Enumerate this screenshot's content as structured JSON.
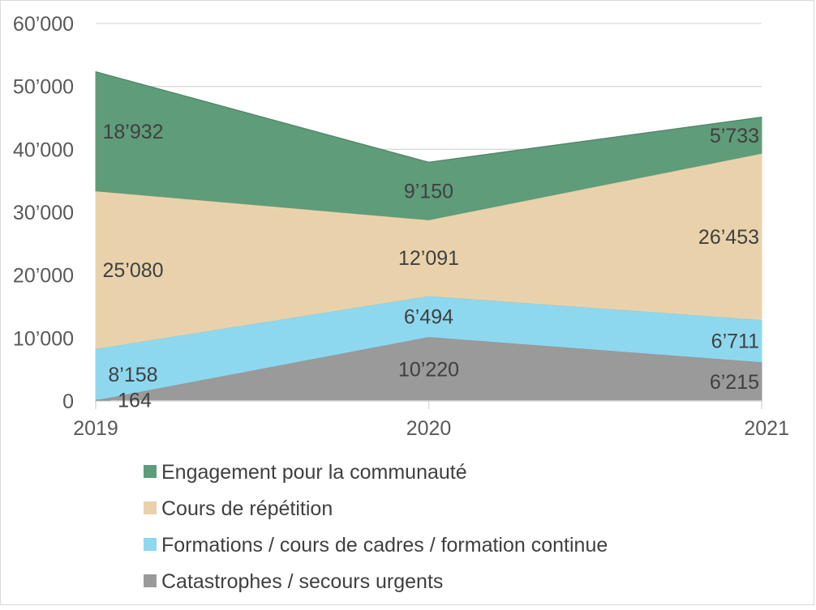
{
  "chart_data": {
    "type": "area",
    "stacked": true,
    "categories": [
      "2019",
      "2020",
      "2021"
    ],
    "ylim": [
      0,
      60000
    ],
    "yticks": [
      0,
      10000,
      20000,
      30000,
      40000,
      50000,
      60000
    ],
    "ytick_labels": [
      "0",
      "10’000",
      "20’000",
      "30’000",
      "40’000",
      "50’000",
      "60’000"
    ],
    "grid": true,
    "legend_position": "bottom",
    "series": [
      {
        "name": "Catastrophes / secours urgents",
        "values": [
          164,
          10220,
          6215
        ],
        "labels": [
          "164",
          "10’220",
          "6’215"
        ],
        "color": "#9a9a9a"
      },
      {
        "name": "Formations / cours de cadres / formation continue",
        "values": [
          8158,
          6494,
          6711
        ],
        "labels": [
          "8’158",
          "6’494",
          "6’711"
        ],
        "color": "#8ed8ef"
      },
      {
        "name": "Cours de répétition",
        "values": [
          25080,
          12091,
          26453
        ],
        "labels": [
          "25’080",
          "12’091",
          "26’453"
        ],
        "color": "#e9d2ab"
      },
      {
        "name": "Engagement pour la communauté",
        "values": [
          18932,
          9150,
          5733
        ],
        "labels": [
          "18’932",
          "9’150",
          "5’733"
        ],
        "color": "#5f9c7a"
      }
    ],
    "legend_order": [
      "Engagement pour la communauté",
      "Cours de répétition",
      "Formations / cours de cadres / formation continue",
      "Catastrophes / secours urgents"
    ]
  }
}
